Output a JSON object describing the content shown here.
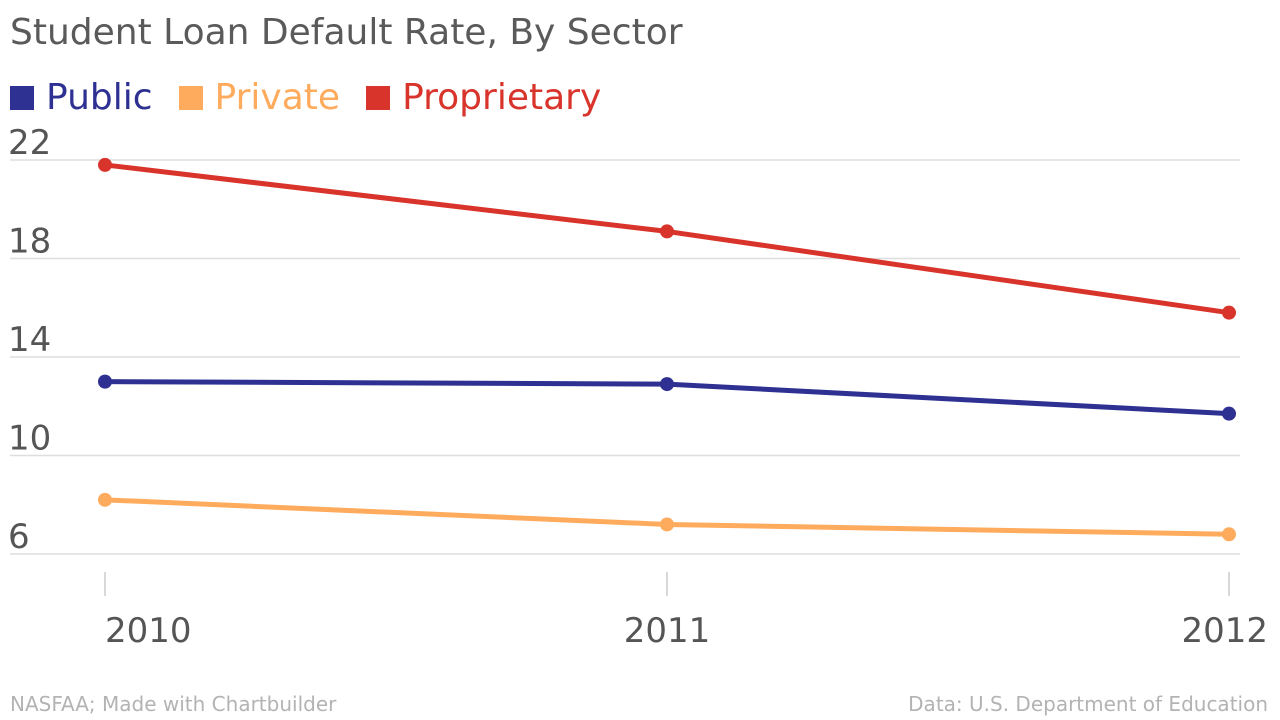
{
  "chart_data": {
    "type": "line",
    "title": "Student Loan Default Rate, By Sector",
    "x": [
      "2010",
      "2011",
      "2012"
    ],
    "y_ticks": [
      "22",
      "18",
      "14",
      "10",
      "6"
    ],
    "ylim": [
      6,
      22
    ],
    "grid": true,
    "legend_position": "top-left",
    "series": [
      {
        "name": "Public",
        "color": "#2e3192",
        "values": [
          13.0,
          12.9,
          11.7
        ]
      },
      {
        "name": "Private",
        "color": "#ffab5e",
        "values": [
          8.2,
          7.2,
          6.8
        ]
      },
      {
        "name": "Proprietary",
        "color": "#d9342b",
        "values": [
          21.8,
          19.1,
          15.8
        ]
      }
    ]
  },
  "footer": {
    "source_left": "NASFAA; Made with Chartbuilder",
    "source_right": "Data: U.S. Department of Education"
  }
}
